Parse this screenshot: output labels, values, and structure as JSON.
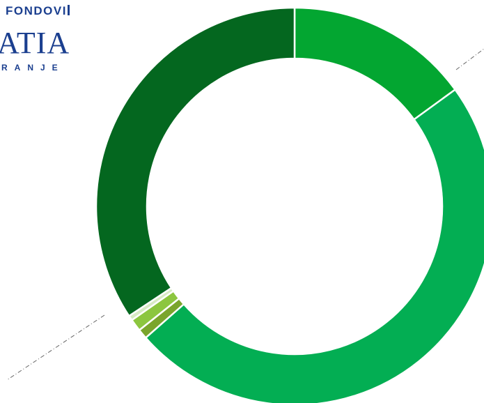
{
  "logo": {
    "line1": "FONDOVI",
    "line2": "ATIA",
    "line3": "RANJE"
  },
  "chart_data": {
    "type": "pie",
    "donut": true,
    "legend": "none",
    "slices": [
      {
        "value": 15.0,
        "color": "#03a631"
      },
      {
        "value": 48.5,
        "color": "#03ae53"
      },
      {
        "value": 0.8,
        "color": "#7aa52c"
      },
      {
        "value": 1.0,
        "color": "#8cc63f"
      },
      {
        "value": 0.4,
        "color": "#d8ebc4"
      },
      {
        "value": 34.3,
        "color": "#04671f"
      }
    ]
  }
}
